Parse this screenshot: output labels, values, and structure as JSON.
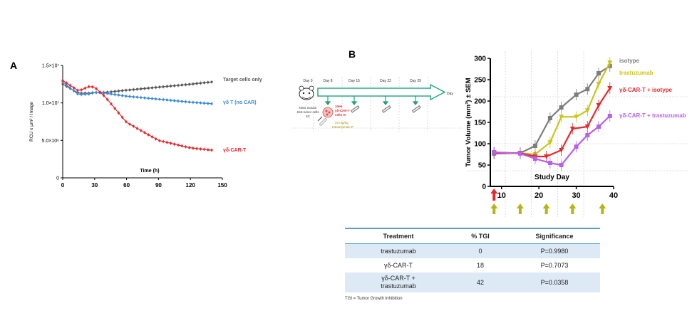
{
  "panel_a_letter": "A",
  "panel_b_letter": "B",
  "timeline": {
    "days": [
      "Day 0",
      "Day 8",
      "Day 15",
      "Day 22",
      "Day 29"
    ],
    "day_end": "Day",
    "mouse_text": [
      "NSG mouse",
      "Se6 tumor cells",
      "SC"
    ],
    "cells_text": [
      "10e6",
      "γδ-CAR-T",
      "cells IV"
    ],
    "trastuzumab_text": [
      "20 mg/kg",
      "trastuzumab IP"
    ]
  },
  "chart_data": [
    {
      "type": "line",
      "title": "",
      "xlabel": "Time (h)",
      "ylabel": "RCU x µm² / Image",
      "xlim": [
        0,
        150
      ],
      "ylim": [
        0,
        15000000
      ],
      "xticks": [
        "0",
        "30",
        "60",
        "90",
        "120",
        "150"
      ],
      "yticks": [
        "0",
        "5.0×10⁶",
        "1.0×10⁷",
        "1.5×10⁷"
      ],
      "x": [
        0,
        15,
        25,
        30,
        40,
        60,
        90,
        120,
        140
      ],
      "series": [
        {
          "name": "Target cells only",
          "color": "#555555",
          "values": [
            12500000,
            11300000,
            11300000,
            11400000,
            11400000,
            11700000,
            12100000,
            12500000,
            12800000
          ]
        },
        {
          "name": "γδ T (no CAR)",
          "color": "#3b8ad8",
          "values": [
            12800000,
            11100000,
            11200000,
            11400000,
            11300000,
            10900000,
            10500000,
            10100000,
            9900000
          ]
        },
        {
          "name": "γδ-CAR-T",
          "color": "#e8262b",
          "values": [
            13000000,
            11600000,
            12200000,
            12100000,
            10800000,
            7400000,
            5000000,
            4000000,
            3700000
          ]
        }
      ]
    },
    {
      "type": "line",
      "title": "",
      "xlabel": "Study Day",
      "ylabel": "Tumor Volume (mm³) ± SEM",
      "xlim": [
        7,
        40
      ],
      "ylim": [
        0,
        300
      ],
      "xticks": [
        "10",
        "20",
        "30",
        "40"
      ],
      "yticks": [
        "0",
        "50",
        "100",
        "150",
        "200",
        "250",
        "300"
      ],
      "series": [
        {
          "name": "isotype",
          "color": "#7d7d7d",
          "x": [
            8,
            15,
            19,
            23,
            26,
            30,
            33,
            36,
            39
          ],
          "values": [
            77,
            78,
            95,
            160,
            185,
            215,
            228,
            265,
            282
          ]
        },
        {
          "name": "trastuzumab",
          "color": "#c9c51c",
          "x": [
            8,
            15,
            19,
            23,
            26,
            30,
            33,
            36,
            39
          ],
          "values": [
            80,
            78,
            75,
            103,
            163,
            163,
            178,
            240,
            290
          ]
        },
        {
          "name": "γδ-CAR-T + isotype",
          "color": "#e8262b",
          "x": [
            8,
            15,
            19,
            22,
            26,
            29,
            33,
            36,
            39
          ],
          "values": [
            78,
            78,
            70,
            70,
            85,
            135,
            140,
            190,
            230
          ]
        },
        {
          "name": "γδ-CAR-T + trastuzumab",
          "color": "#b760e8",
          "x": [
            8,
            15,
            19,
            23,
            26,
            30,
            33,
            36,
            39
          ],
          "values": [
            80,
            77,
            65,
            55,
            50,
            93,
            120,
            140,
            165
          ]
        }
      ],
      "markers": {
        "cell_dose_days": [
          8
        ],
        "trastuzumab_days": [
          8,
          15,
          22,
          29,
          37
        ]
      }
    }
  ],
  "table": {
    "headers": [
      "Treatment",
      "% TGI",
      "Significance"
    ],
    "rows": [
      {
        "treatment": "trastuzumab",
        "tgi": "0",
        "sig": "P=0.9980"
      },
      {
        "treatment": "γδ-CAR-T",
        "tgi": "18",
        "sig": "P=0.7073"
      },
      {
        "treatment_line1": "γδ-CAR-T +",
        "treatment_line2": "trastuzumab",
        "tgi": "42",
        "sig": "P=0.0358"
      }
    ],
    "footnote": "TGI = Tumor Growth Inhibition"
  }
}
